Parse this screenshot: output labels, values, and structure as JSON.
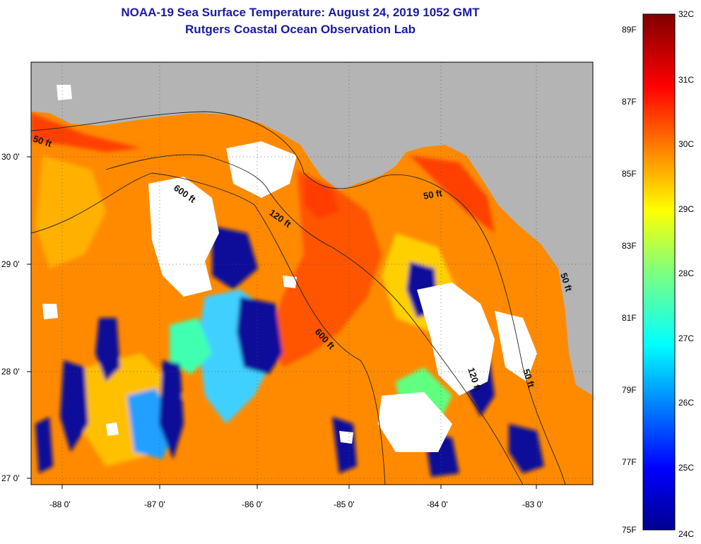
{
  "title": "NOAA-19 Sea Surface Temperature:  August 24, 2019 1052 GMT",
  "subtitle": "Rutgers Coastal Ocean Observation Lab",
  "lon_ticks": [
    "-88 0'",
    "-87 0'",
    "-86 0'",
    "-85 0'",
    "-84 0'",
    "-83 0'"
  ],
  "lat_ticks": [
    "30 0'",
    "29 0'",
    "28 0'",
    "27 0'"
  ],
  "contour_labels": [
    "50 ft",
    "600 ft",
    "120 ft",
    "50 ft",
    "600 ft",
    "120 ft",
    "50 ft",
    "50 ft"
  ],
  "colorbar": {
    "celsius": [
      "32C",
      "31C",
      "30C",
      "29C",
      "28C",
      "27C",
      "26C",
      "25C",
      "24C"
    ],
    "fahrenheit": [
      "89F",
      "87F",
      "85F",
      "83F",
      "81F",
      "79F",
      "77F",
      "75F"
    ]
  },
  "colors": {
    "land": "#b4b4b4",
    "cloud": "#ffffff",
    "title": "#1a1aa6"
  }
}
